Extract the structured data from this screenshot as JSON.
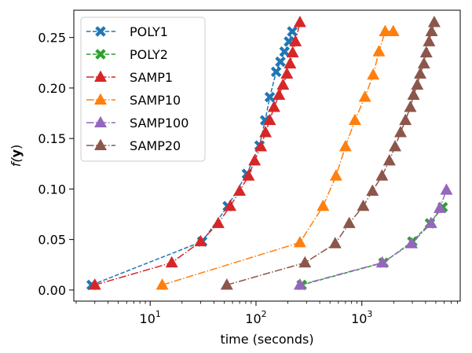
{
  "chart_data": {
    "type": "line",
    "xlabel": "time (seconds)",
    "ylabel_base": "f(",
    "ylabel_bold": "y",
    "ylabel_close": ")",
    "xscale": "log",
    "xlim": [
      1.9,
      8500
    ],
    "ylim": [
      -0.011,
      0.277
    ],
    "x_ticks": [
      {
        "value": 10,
        "base": "10",
        "exp": "1"
      },
      {
        "value": 100,
        "base": "10",
        "exp": "2"
      },
      {
        "value": 1000,
        "base": "10",
        "exp": "3"
      }
    ],
    "y_ticks": [
      {
        "value": 0.0,
        "label": "0.00"
      },
      {
        "value": 0.05,
        "label": "0.05"
      },
      {
        "value": 0.1,
        "label": "0.10"
      },
      {
        "value": 0.15,
        "label": "0.15"
      },
      {
        "value": 0.2,
        "label": "0.20"
      },
      {
        "value": 0.25,
        "label": "0.25"
      }
    ],
    "grid": false,
    "legend_position": "upper-left",
    "series": [
      {
        "name": "POLY1",
        "color": "#1f77b4",
        "marker": "X",
        "dash": "dashed",
        "x": [
          2.8,
          31,
          54,
          82,
          108,
          122,
          135,
          155,
          170,
          186,
          205,
          220
        ],
        "y": [
          0.005,
          0.048,
          0.083,
          0.115,
          0.143,
          0.168,
          0.191,
          0.216,
          0.226,
          0.236,
          0.246,
          0.256
        ]
      },
      {
        "name": "POLY2",
        "color": "#2ca02c",
        "marker": "X",
        "dash": "dashed",
        "x": [
          270,
          1600,
          3000,
          4400,
          5800
        ],
        "y": [
          0.005,
          0.027,
          0.048,
          0.066,
          0.082
        ]
      },
      {
        "name": "SAMP1",
        "color": "#d62728",
        "marker": "^",
        "dash": "dashdot",
        "x": [
          3.0,
          16,
          30,
          44,
          57,
          70,
          85,
          97,
          111,
          123,
          135,
          148,
          165,
          180,
          196,
          210,
          222,
          236,
          260
        ],
        "y": [
          0.005,
          0.027,
          0.048,
          0.066,
          0.083,
          0.098,
          0.113,
          0.128,
          0.142,
          0.156,
          0.168,
          0.181,
          0.193,
          0.203,
          0.214,
          0.224,
          0.235,
          0.246,
          0.265
        ]
      },
      {
        "name": "SAMP10",
        "color": "#ff7f0e",
        "marker": "^",
        "dash": "dashdot",
        "x": [
          13,
          260,
          430,
          570,
          700,
          860,
          1070,
          1280,
          1450,
          1660,
          1980
        ],
        "y": [
          0.005,
          0.047,
          0.083,
          0.113,
          0.142,
          0.168,
          0.191,
          0.213,
          0.236,
          0.256,
          0.256
        ]
      },
      {
        "name": "SAMP100",
        "color": "#9467bd",
        "marker": "^",
        "dash": "dashdot",
        "x": [
          260,
          1560,
          2950,
          4500,
          5450,
          6300
        ],
        "y": [
          0.005,
          0.027,
          0.046,
          0.066,
          0.081,
          0.099
        ]
      },
      {
        "name": "SAMP20",
        "color": "#8c564b",
        "marker": "^",
        "dash": "dashdot",
        "x": [
          53,
          290,
          560,
          760,
          1030,
          1260,
          1550,
          1820,
          2060,
          2320,
          2580,
          2870,
          3080,
          3340,
          3560,
          3860,
          4060,
          4320,
          4560,
          4830
        ],
        "y": [
          0.005,
          0.027,
          0.046,
          0.066,
          0.083,
          0.098,
          0.113,
          0.128,
          0.142,
          0.156,
          0.168,
          0.181,
          0.193,
          0.203,
          0.214,
          0.224,
          0.235,
          0.246,
          0.256,
          0.265
        ]
      }
    ]
  }
}
